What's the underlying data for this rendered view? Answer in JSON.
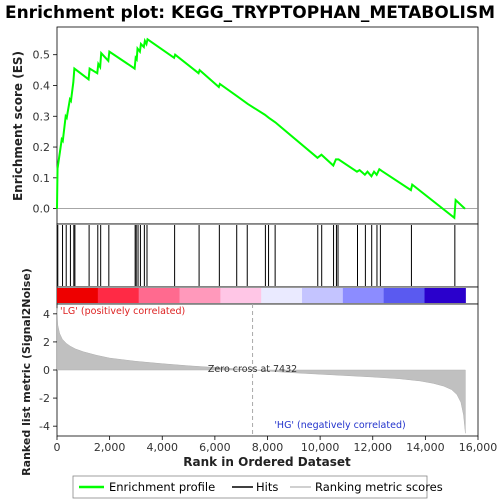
{
  "chart_data": {
    "type": "line",
    "title": "Enrichment plot: KEGG_TRYPTOPHAN_METABOLISM",
    "top_panel": {
      "ylabel": "Enrichment score (ES)",
      "ylim": [
        -0.05,
        0.59
      ],
      "yticks": [
        0.0,
        0.1,
        0.2,
        0.3,
        0.4,
        0.5
      ],
      "ytick_labels": [
        "0.0",
        "0.1",
        "0.2",
        "0.3",
        "0.4",
        "0.5"
      ],
      "series": [
        {
          "name": "Enrichment profile",
          "color": "#00ff00",
          "x": [
            0,
            20,
            180,
            220,
            330,
            370,
            490,
            530,
            620,
            660,
            1200,
            1240,
            1530,
            1570,
            1640,
            1680,
            1950,
            1990,
            2950,
            2990,
            3030,
            3060,
            3150,
            3190,
            3300,
            3340,
            3400,
            3440,
            4450,
            4490,
            5380,
            5420,
            6150,
            6190,
            6850,
            7250,
            7900,
            8050,
            8300,
            9900,
            10050,
            10500,
            10600,
            10700,
            11400,
            11500,
            11700,
            11800,
            11950,
            12050,
            12150,
            12250,
            12350,
            13450,
            13500,
            15100,
            15150,
            15500
          ],
          "y": [
            0.0,
            0.13,
            0.225,
            0.22,
            0.3,
            0.295,
            0.355,
            0.35,
            0.41,
            0.455,
            0.42,
            0.455,
            0.44,
            0.47,
            0.46,
            0.505,
            0.48,
            0.51,
            0.455,
            0.49,
            0.485,
            0.52,
            0.51,
            0.535,
            0.525,
            0.545,
            0.535,
            0.55,
            0.49,
            0.5,
            0.44,
            0.45,
            0.395,
            0.405,
            0.365,
            0.34,
            0.305,
            0.295,
            0.28,
            0.165,
            0.175,
            0.14,
            0.16,
            0.16,
            0.12,
            0.125,
            0.11,
            0.12,
            0.105,
            0.12,
            0.11,
            0.128,
            0.122,
            0.06,
            0.078,
            -0.03,
            0.028,
            0.0
          ]
        }
      ],
      "hits_label": "Hits",
      "hit_positions": [
        30,
        210,
        350,
        510,
        640,
        680,
        1220,
        1550,
        1660,
        1970,
        2970,
        3010,
        3080,
        3170,
        3320,
        3420,
        4470,
        5400,
        6170,
        6830,
        7230,
        7920,
        8040,
        8290,
        9910,
        10060,
        10510,
        10620,
        10680,
        11420,
        11720,
        11960,
        12160,
        12290,
        13470,
        15120
      ]
    },
    "heat_band": {
      "colors": [
        "#ee0000",
        "#ff2a45",
        "#ff6a8f",
        "#ff99bb",
        "#ffc6e6",
        "#eaeaff",
        "#c4c4ff",
        "#8c8cff",
        "#5a5af0",
        "#2a00cc"
      ]
    },
    "bottom_panel": {
      "ylabel": "Ranked list metric (Signal2Noise)",
      "xlabel": "Rank in Ordered Dataset",
      "xlim": [
        0,
        16000
      ],
      "ylim": [
        -4.7,
        4.7
      ],
      "xticks": [
        0,
        2000,
        4000,
        6000,
        8000,
        10000,
        12000,
        14000,
        16000
      ],
      "xtick_labels": [
        "0",
        "2,000",
        "4,000",
        "6,000",
        "8,000",
        "10,000",
        "12,000",
        "14,000",
        "16,000"
      ],
      "yticks": [
        4,
        2,
        0,
        -2,
        -4
      ],
      "ytick_labels": [
        "4",
        "2",
        "0",
        "-2",
        "-4"
      ],
      "zero_cross": 7432,
      "zero_cross_label": "Zero cross at 7432",
      "pos_label": "'LG' (positively correlated)",
      "neg_label": "'HG' (negatively correlated)",
      "metric_profile": {
        "x": [
          0,
          30,
          100,
          200,
          350,
          500,
          700,
          1000,
          1500,
          2000,
          3000,
          4000,
          5000,
          6000,
          7000,
          7432,
          8000,
          9000,
          10000,
          11000,
          12000,
          13000,
          13800,
          14300,
          14700,
          15000,
          15200,
          15350,
          15450,
          15520
        ],
        "y": [
          4.4,
          3.2,
          2.6,
          2.2,
          1.9,
          1.7,
          1.5,
          1.3,
          1.05,
          0.85,
          0.62,
          0.45,
          0.3,
          0.18,
          0.06,
          0.0,
          -0.08,
          -0.2,
          -0.3,
          -0.4,
          -0.5,
          -0.62,
          -0.78,
          -0.95,
          -1.15,
          -1.4,
          -1.75,
          -2.3,
          -3.2,
          -4.5
        ]
      }
    },
    "legend": {
      "items": [
        {
          "label": "Enrichment profile",
          "color": "#00ff00"
        },
        {
          "label": "Hits",
          "color": "#000000"
        },
        {
          "label": "Ranking metric scores",
          "color": "#c0c0c0"
        }
      ]
    }
  }
}
